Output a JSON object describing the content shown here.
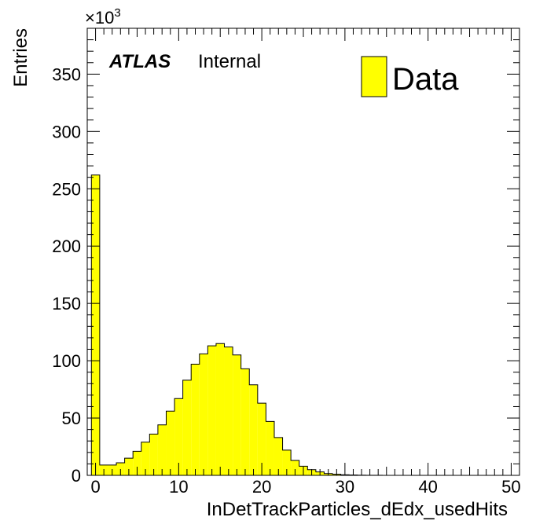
{
  "chart_data": {
    "type": "bar",
    "subtype": "histogram",
    "xlabel": "InDetTrackParticles_dEdx_usedHits",
    "ylabel": "Entries",
    "y_multiplier_base": "×10",
    "y_multiplier_exp": "3",
    "experiment_label": "ATLAS",
    "status_label": "Internal",
    "xlim": [
      -1,
      51
    ],
    "ylim": [
      0,
      390
    ],
    "grid": false,
    "legend_position": "top-right",
    "x_ticks": [
      "0",
      "10",
      "20",
      "30",
      "40",
      "50"
    ],
    "y_ticks": [
      "0",
      "50",
      "100",
      "150",
      "200",
      "250",
      "300",
      "350"
    ],
    "bin_width": 1,
    "bin_low_edges": [
      -0.5,
      0.5,
      1.5,
      2.5,
      3.5,
      4.5,
      5.5,
      6.5,
      7.5,
      8.5,
      9.5,
      10.5,
      11.5,
      12.5,
      13.5,
      14.5,
      15.5,
      16.5,
      17.5,
      18.5,
      19.5,
      20.5,
      21.5,
      22.5,
      23.5,
      24.5,
      25.5,
      26.5,
      27.5,
      28.5,
      29.5,
      30.5,
      31.5,
      32.5,
      33.5,
      34.5,
      35.5,
      36.5,
      37.5,
      38.5,
      39.5,
      40.5,
      41.5,
      42.5,
      43.5,
      44.5,
      45.5,
      46.5,
      47.5,
      48.5
    ],
    "series": [
      {
        "name": "Data",
        "color": "#ffff00",
        "edge_color": "#000000",
        "values": [
          262,
          9,
          9,
          11,
          15,
          21,
          29,
          36,
          44,
          56,
          67,
          83,
          97,
          106,
          113,
          115,
          112,
          105,
          93,
          79,
          63,
          47,
          33,
          22,
          13,
          8,
          5,
          3,
          1.5,
          1,
          0.5,
          0.3,
          0.2,
          0.1,
          0.05,
          0,
          0,
          0,
          0,
          0,
          0,
          0,
          0,
          0,
          0,
          0,
          0,
          0,
          0,
          0
        ]
      }
    ]
  }
}
